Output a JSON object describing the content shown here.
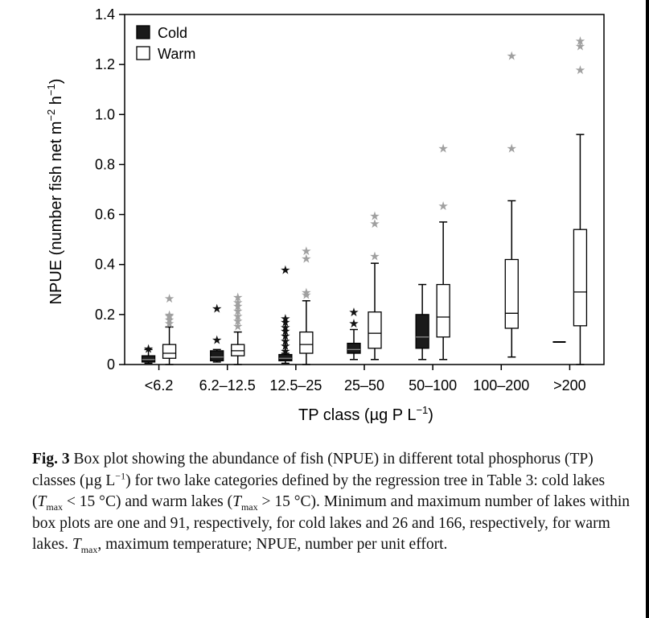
{
  "chart_data": {
    "type": "box",
    "ylabel": "NPUE (number fish net m−2 h−1)",
    "ylabel_main": "NPUE (number fish net m",
    "ylabel_exp1": "−2",
    "ylabel_mid": " h",
    "ylabel_exp2": "−1",
    "ylabel_end": ")",
    "xlabel": "TP class (µg P L−1)",
    "xlabel_main": "TP class (µg P L",
    "xlabel_exp": "−1",
    "xlabel_end": ")",
    "ylim": [
      0,
      1.4
    ],
    "yticks": [
      0,
      0.2,
      0.4,
      0.6,
      0.8,
      1.0,
      1.2,
      1.4
    ],
    "ytick_labels": [
      "0",
      "0.2",
      "0.4",
      "0.6",
      "0.8",
      "1.0",
      "1.2",
      "1.4"
    ],
    "categories": [
      "<6.2",
      "6.2–12.5",
      "12.5–25",
      "25–50",
      "50–100",
      "100–200",
      ">200"
    ],
    "legend": {
      "position": "top-left",
      "entries": [
        "Cold",
        "Warm"
      ]
    },
    "colors": {
      "cold_fill": "#1a1a1a",
      "warm_fill": "#ffffff",
      "outlier_cold": "#111111",
      "outlier_warm": "#a0a0a0"
    },
    "series": [
      {
        "name": "Cold",
        "boxes": [
          {
            "category": "<6.2",
            "min": 0.005,
            "q1": 0.01,
            "median": 0.02,
            "q3": 0.035,
            "max": 0.06,
            "outliers": [
              0.07
            ]
          },
          {
            "category": "6.2–12.5",
            "min": 0.01,
            "q1": 0.015,
            "median": 0.03,
            "q3": 0.055,
            "max": 0.06,
            "outliers": [
              0.105,
              0.23
            ]
          },
          {
            "category": "12.5–25",
            "min": 0.005,
            "q1": 0.015,
            "median": 0.025,
            "q3": 0.04,
            "max": 0.045,
            "outliers": [
              0.06,
              0.08,
              0.1,
              0.12,
              0.14,
              0.155,
              0.175,
              0.19,
              0.385
            ]
          },
          {
            "category": "25–50",
            "min": 0.02,
            "q1": 0.045,
            "median": 0.06,
            "q3": 0.085,
            "max": 0.14,
            "outliers": [
              0.17,
              0.215
            ]
          },
          {
            "category": "50–100",
            "min": 0.02,
            "q1": 0.065,
            "median": 0.11,
            "q3": 0.2,
            "max": 0.32,
            "outliers": []
          },
          null,
          {
            "category": ">200",
            "min": 0.09,
            "q1": 0.09,
            "median": 0.09,
            "q3": 0.09,
            "max": 0.09,
            "outliers": []
          }
        ]
      },
      {
        "name": "Warm",
        "boxes": [
          {
            "category": "<6.2",
            "min": 0.0,
            "q1": 0.025,
            "median": 0.045,
            "q3": 0.08,
            "max": 0.15,
            "outliers": [
              0.17,
              0.185,
              0.2,
              0.205,
              0.27
            ]
          },
          {
            "category": "6.2–12.5",
            "min": 0.0,
            "q1": 0.035,
            "median": 0.055,
            "q3": 0.08,
            "max": 0.13,
            "outliers": [
              0.16,
              0.18,
              0.2,
              0.22,
              0.24,
              0.255,
              0.275
            ]
          },
          {
            "category": "12.5–25",
            "min": 0.0,
            "q1": 0.045,
            "median": 0.08,
            "q3": 0.13,
            "max": 0.255,
            "outliers": [
              0.285,
              0.295,
              0.43,
              0.46
            ]
          },
          {
            "category": "25–50",
            "min": 0.02,
            "q1": 0.065,
            "median": 0.125,
            "q3": 0.21,
            "max": 0.405,
            "outliers": [
              0.44,
              0.57,
              0.6
            ]
          },
          {
            "category": "50–100",
            "min": 0.02,
            "q1": 0.11,
            "median": 0.19,
            "q3": 0.32,
            "max": 0.57,
            "outliers": [
              0.64,
              0.87
            ]
          },
          {
            "category": "100–200",
            "min": 0.03,
            "q1": 0.145,
            "median": 0.205,
            "q3": 0.42,
            "max": 0.655,
            "outliers": [
              0.87,
              1.24
            ]
          },
          {
            "category": ">200",
            "min": 0.0,
            "q1": 0.155,
            "median": 0.29,
            "q3": 0.54,
            "max": 0.92,
            "outliers": [
              1.185,
              1.28,
              1.3
            ]
          }
        ]
      }
    ]
  },
  "caption": {
    "fig_label": "Fig. 3",
    "p1": " Box plot showing the abundance of fish (NPUE) in different total phosphorus (TP) classes (µg L",
    "p1_sup": "−1",
    "p2": ") for two lake categories defined by the regression tree in Table 3: cold lakes (",
    "t1": "T",
    "t1_sub": "max",
    "p3": " < 15 °C) and warm lakes (",
    "t2": "T",
    "t2_sub": "max",
    "p4": " > 15 °C). Minimum and maximum number of lakes within box plots are one and 91, respectively, for cold lakes and 26 and 166, respectively, for warm lakes. ",
    "t3": "T",
    "t3_sub": "max",
    "p5": ", maximum temperature; NPUE, number per unit effort."
  }
}
